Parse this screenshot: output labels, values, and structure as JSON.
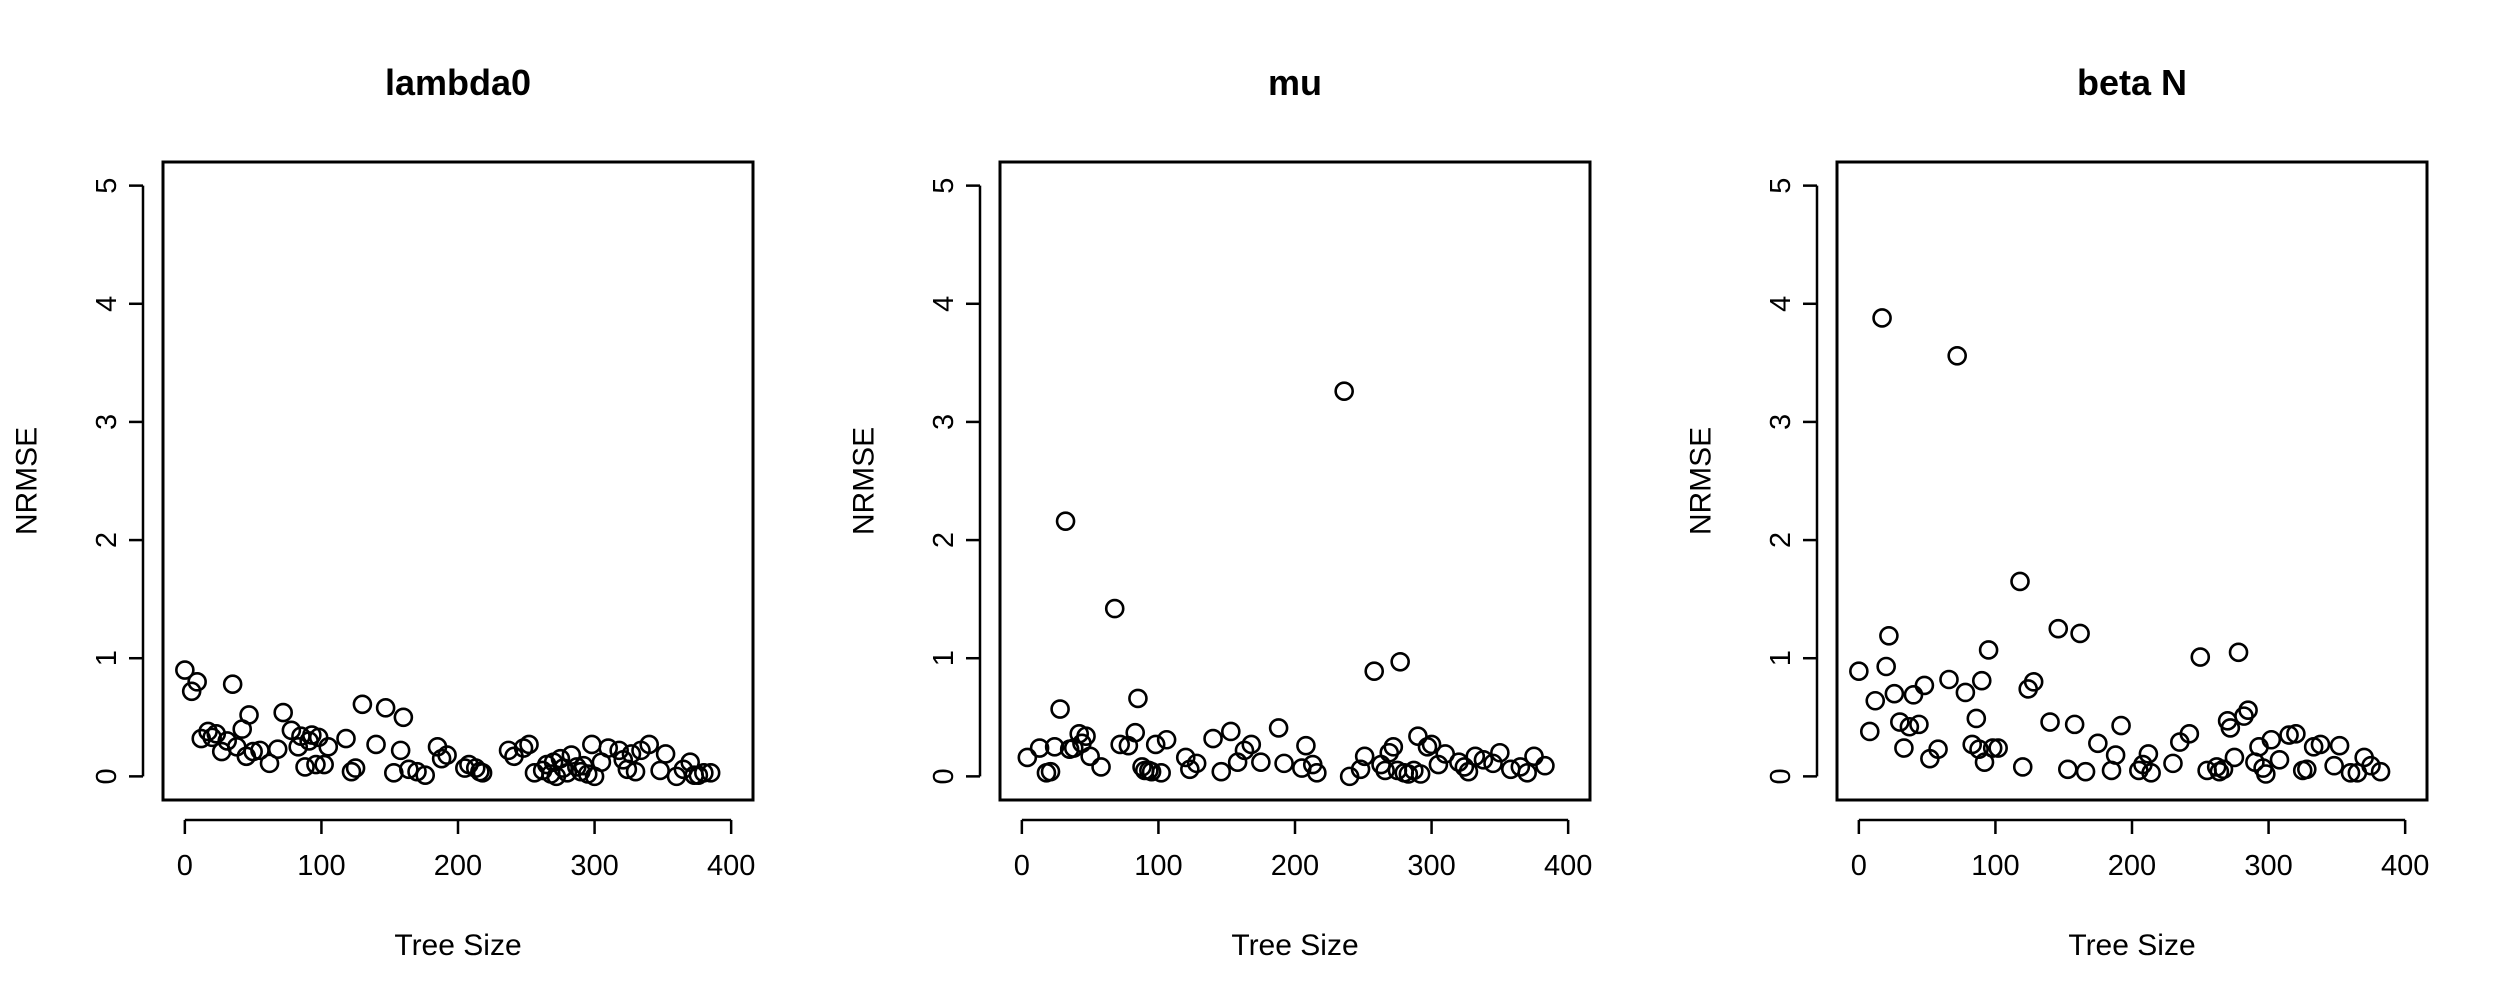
{
  "chart_data": [
    {
      "type": "scatter",
      "title": "lambda0",
      "xlabel": "Tree Size",
      "ylabel": "NRMSE",
      "xlim": [
        -16,
        416
      ],
      "ylim": [
        -0.2,
        5.2
      ],
      "xticks": [
        0,
        100,
        200,
        300,
        400
      ],
      "yticks": [
        0,
        1,
        2,
        3,
        4,
        5
      ],
      "grid": false,
      "x": [
        0,
        5,
        9,
        12,
        17,
        20,
        23,
        27,
        31,
        35,
        38,
        42,
        45,
        47,
        50,
        55,
        62,
        68,
        72,
        78,
        83,
        85,
        88,
        91,
        93,
        96,
        98,
        102,
        105,
        118,
        122,
        125,
        130,
        140,
        147,
        153,
        158,
        160,
        164,
        170,
        176,
        185,
        188,
        192,
        205,
        208,
        213,
        216,
        218,
        237,
        241,
        248,
        252,
        256,
        262,
        265,
        268,
        270,
        272,
        275,
        277,
        280,
        283,
        287,
        290,
        292,
        295,
        298,
        300,
        305,
        310,
        318,
        321,
        324,
        327,
        330,
        334,
        340,
        348,
        352,
        360,
        365,
        370,
        373,
        376,
        380,
        385
      ],
      "y": [
        0.9,
        0.72,
        0.8,
        0.32,
        0.38,
        0.33,
        0.36,
        0.21,
        0.3,
        0.78,
        0.25,
        0.4,
        0.17,
        0.52,
        0.21,
        0.22,
        0.11,
        0.23,
        0.54,
        0.39,
        0.25,
        0.34,
        0.08,
        0.3,
        0.35,
        0.1,
        0.33,
        0.1,
        0.25,
        0.32,
        0.04,
        0.07,
        0.61,
        0.27,
        0.58,
        0.03,
        0.22,
        0.5,
        0.06,
        0.04,
        0.01,
        0.25,
        0.15,
        0.18,
        0.07,
        0.1,
        0.07,
        0.04,
        0.03,
        0.22,
        0.17,
        0.24,
        0.27,
        0.03,
        0.05,
        0.1,
        0.02,
        0.12,
        0.0,
        0.15,
        0.07,
        0.03,
        0.18,
        0.08,
        0.04,
        0.09,
        0.02,
        0.27,
        0.0,
        0.12,
        0.24,
        0.22,
        0.14,
        0.06,
        0.19,
        0.04,
        0.22,
        0.27,
        0.05,
        0.19,
        0.0,
        0.06,
        0.12,
        0.01,
        0.01,
        0.03,
        0.03
      ]
    },
    {
      "type": "scatter",
      "title": "mu",
      "xlabel": "Tree Size",
      "ylabel": "NRMSE",
      "xlim": [
        -16,
        416
      ],
      "ylim": [
        -0.2,
        5.2
      ],
      "xticks": [
        0,
        100,
        200,
        300,
        400
      ],
      "yticks": [
        0,
        1,
        2,
        3,
        4,
        5
      ],
      "grid": false,
      "x": [
        4,
        13,
        18,
        21,
        24,
        28,
        32,
        35,
        38,
        42,
        44,
        47,
        50,
        58,
        68,
        72,
        78,
        83,
        85,
        88,
        90,
        93,
        95,
        98,
        102,
        106,
        120,
        123,
        128,
        140,
        146,
        153,
        158,
        163,
        168,
        175,
        188,
        192,
        205,
        208,
        213,
        216,
        236,
        240,
        248,
        251,
        258,
        263,
        266,
        269,
        272,
        275,
        277,
        280,
        283,
        287,
        290,
        292,
        297,
        300,
        305,
        310,
        320,
        324,
        327,
        332,
        338,
        345,
        350,
        358,
        365,
        370,
        375,
        383
      ],
      "y": [
        0.16,
        0.24,
        0.03,
        0.04,
        0.25,
        0.57,
        2.16,
        0.23,
        0.24,
        0.36,
        0.28,
        0.34,
        0.17,
        0.08,
        1.42,
        0.27,
        0.26,
        0.37,
        0.66,
        0.08,
        0.05,
        0.05,
        0.04,
        0.27,
        0.03,
        0.31,
        0.16,
        0.06,
        0.11,
        0.32,
        0.04,
        0.38,
        0.12,
        0.22,
        0.27,
        0.12,
        0.41,
        0.11,
        0.07,
        0.26,
        0.1,
        0.03,
        3.26,
        0.0,
        0.06,
        0.17,
        0.89,
        0.1,
        0.05,
        0.2,
        0.25,
        0.05,
        0.97,
        0.03,
        0.02,
        0.05,
        0.34,
        0.02,
        0.25,
        0.27,
        0.1,
        0.19,
        0.12,
        0.08,
        0.04,
        0.17,
        0.14,
        0.11,
        0.2,
        0.06,
        0.08,
        0.03,
        0.17,
        0.09
      ]
    },
    {
      "type": "scatter",
      "title": "beta N",
      "xlabel": "Tree Size",
      "ylabel": "NRMSE",
      "xlim": [
        -16,
        416
      ],
      "ylim": [
        -0.2,
        5.2
      ],
      "xticks": [
        0,
        100,
        200,
        300,
        400
      ],
      "yticks": [
        0,
        1,
        2,
        3,
        4,
        5
      ],
      "grid": false,
      "x": [
        0,
        8,
        12,
        17,
        20,
        22,
        26,
        30,
        33,
        37,
        40,
        44,
        48,
        52,
        58,
        66,
        72,
        78,
        83,
        86,
        88,
        90,
        92,
        95,
        98,
        102,
        118,
        120,
        124,
        128,
        140,
        146,
        153,
        158,
        162,
        166,
        175,
        185,
        188,
        192,
        205,
        208,
        212,
        214,
        230,
        235,
        242,
        250,
        255,
        262,
        264,
        267,
        270,
        272,
        275,
        278,
        282,
        285,
        290,
        293,
        296,
        298,
        302,
        308,
        315,
        320,
        325,
        328,
        333,
        338,
        348,
        352,
        360,
        365,
        370,
        375,
        382
      ],
      "y": [
        0.89,
        0.38,
        0.64,
        3.88,
        0.93,
        1.19,
        0.7,
        0.46,
        0.24,
        0.42,
        0.69,
        0.44,
        0.77,
        0.15,
        0.23,
        0.82,
        3.56,
        0.71,
        0.27,
        0.49,
        0.23,
        0.81,
        0.12,
        1.07,
        0.24,
        0.24,
        1.65,
        0.08,
        0.74,
        0.8,
        0.46,
        1.25,
        0.06,
        0.44,
        1.21,
        0.04,
        0.28,
        0.05,
        0.18,
        0.43,
        0.05,
        0.1,
        0.19,
        0.03,
        0.11,
        0.29,
        0.36,
        1.01,
        0.05,
        0.08,
        0.04,
        0.06,
        0.47,
        0.41,
        0.16,
        1.05,
        0.51,
        0.56,
        0.12,
        0.25,
        0.07,
        0.02,
        0.31,
        0.14,
        0.35,
        0.36,
        0.05,
        0.06,
        0.25,
        0.27,
        0.09,
        0.26,
        0.03,
        0.03,
        0.16,
        0.09,
        0.04
      ]
    }
  ]
}
